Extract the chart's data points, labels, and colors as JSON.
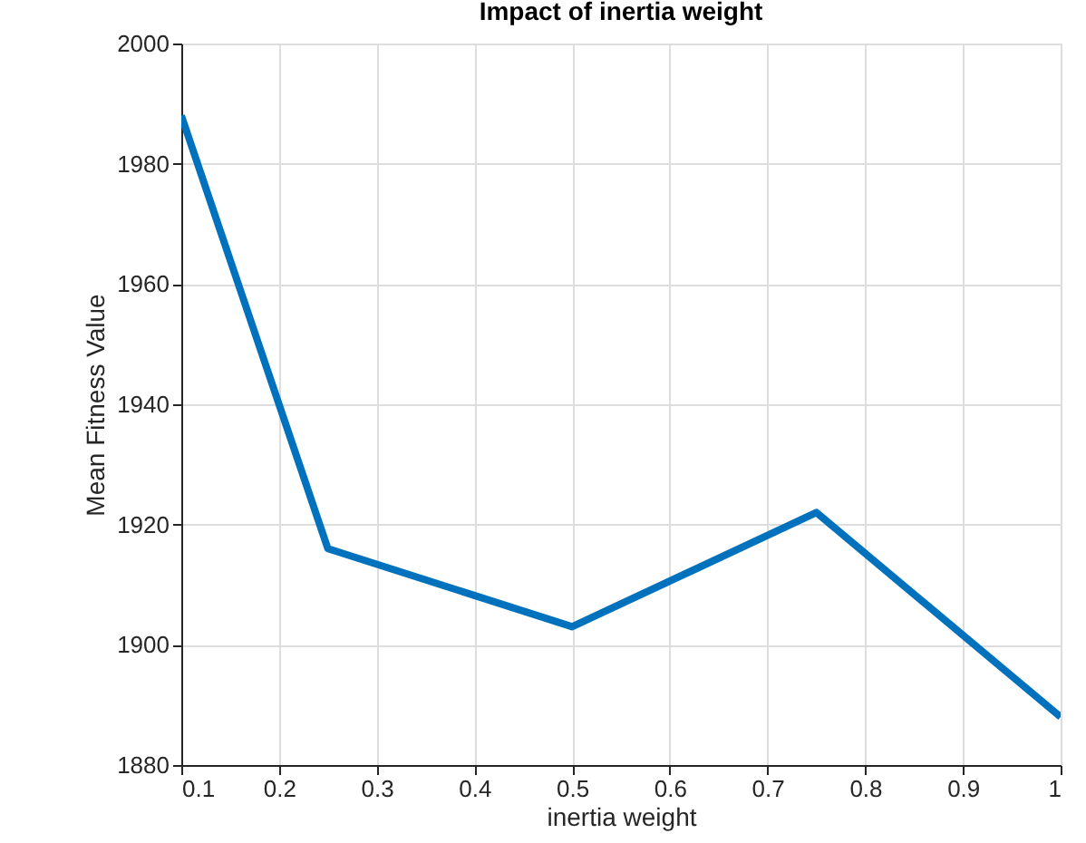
{
  "chart_data": {
    "type": "line",
    "title": "Impact of inertia weight",
    "xlabel": "inertia weight",
    "ylabel": "Mean Fitness Value",
    "x": [
      0.1,
      0.25,
      0.5,
      0.75,
      1
    ],
    "series": [
      {
        "color": "#0072bd",
        "values": [
          1988,
          1916,
          1903,
          1922,
          1888
        ]
      }
    ],
    "xlim": [
      0.1,
      1
    ],
    "xticks": [
      0.1,
      0.2,
      0.3,
      0.4,
      0.5,
      0.6,
      0.7,
      0.8,
      0.9,
      1
    ],
    "ylim": [
      1880,
      2000
    ],
    "yticks": [
      1880,
      1900,
      1920,
      1940,
      1960,
      1980,
      2000
    ],
    "grid": true,
    "line_style": "solid",
    "marker": "none",
    "legend": false
  }
}
